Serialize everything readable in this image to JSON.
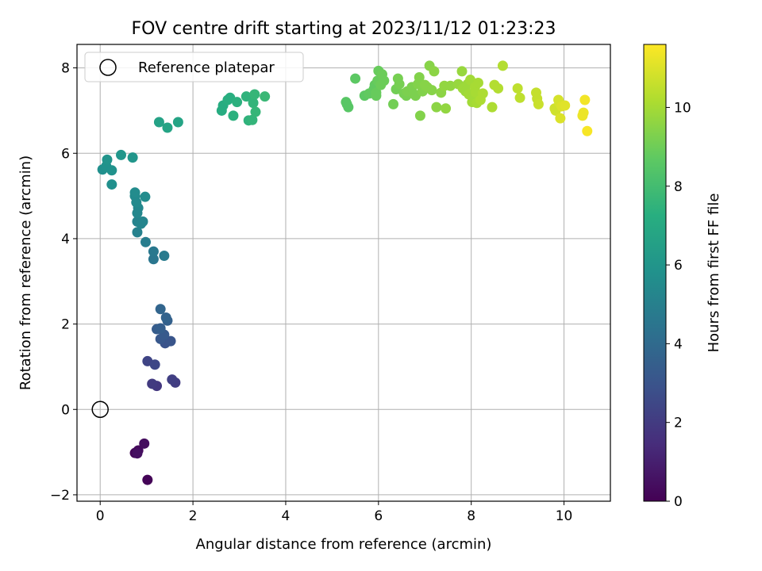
{
  "chart_data": {
    "type": "scatter",
    "title": "FOV centre drift starting at 2023/11/12 01:23:23",
    "xlabel": "Angular distance from reference (arcmin)",
    "ylabel": "Rotation from reference (arcmin)",
    "xlim": [
      -0.5,
      11.0
    ],
    "ylim": [
      -2.15,
      8.55
    ],
    "x_ticks": [
      0,
      2,
      4,
      6,
      8,
      10
    ],
    "y_ticks": [
      -2,
      0,
      2,
      4,
      6,
      8
    ],
    "grid": true,
    "legend": {
      "placement": "top-left",
      "entries": [
        "Reference platepar"
      ]
    },
    "colorbar": {
      "label": "Hours from first FF file",
      "min": 0,
      "max": 11.6,
      "ticks": [
        0,
        2,
        4,
        6,
        8,
        10
      ],
      "colormap": "viridis"
    },
    "reference_point": {
      "x": 0,
      "y": 0,
      "label": "Reference platepar"
    },
    "points": [
      [
        1.02,
        -1.65,
        0.1
      ],
      [
        0.75,
        -1.02,
        0.2
      ],
      [
        0.82,
        -0.96,
        0.3
      ],
      [
        0.95,
        -0.8,
        0.4
      ],
      [
        0.8,
        -1.03,
        0.5
      ],
      [
        1.22,
        0.55,
        1.9
      ],
      [
        1.12,
        0.6,
        2.0
      ],
      [
        1.62,
        0.63,
        2.1
      ],
      [
        1.55,
        0.7,
        2.2
      ],
      [
        1.02,
        1.13,
        2.4
      ],
      [
        1.18,
        1.05,
        2.5
      ],
      [
        1.4,
        1.55,
        3.0
      ],
      [
        1.52,
        1.6,
        3.1
      ],
      [
        1.3,
        1.65,
        3.2
      ],
      [
        1.38,
        1.75,
        3.3
      ],
      [
        1.22,
        1.88,
        3.4
      ],
      [
        1.3,
        1.9,
        3.5
      ],
      [
        1.45,
        2.08,
        3.6
      ],
      [
        1.42,
        2.15,
        3.7
      ],
      [
        1.3,
        2.35,
        3.8
      ],
      [
        1.15,
        3.52,
        4.6
      ],
      [
        1.15,
        3.7,
        4.7
      ],
      [
        1.38,
        3.6,
        4.8
      ],
      [
        0.98,
        3.92,
        4.9
      ],
      [
        0.8,
        4.15,
        5.1
      ],
      [
        0.8,
        4.4,
        5.2
      ],
      [
        0.92,
        4.4,
        5.3
      ],
      [
        0.88,
        4.35,
        5.3
      ],
      [
        0.8,
        4.6,
        5.4
      ],
      [
        0.82,
        4.72,
        5.4
      ],
      [
        0.78,
        4.85,
        5.5
      ],
      [
        0.75,
        5.0,
        5.5
      ],
      [
        0.75,
        5.08,
        5.6
      ],
      [
        0.97,
        4.98,
        5.6
      ],
      [
        0.25,
        5.27,
        5.8
      ],
      [
        0.05,
        5.62,
        5.8
      ],
      [
        0.13,
        5.7,
        5.9
      ],
      [
        0.25,
        5.6,
        5.9
      ],
      [
        0.15,
        5.85,
        6.0
      ],
      [
        0.45,
        5.96,
        6.1
      ],
      [
        0.7,
        5.9,
        6.1
      ],
      [
        1.27,
        6.73,
        6.7
      ],
      [
        1.45,
        6.6,
        6.8
      ],
      [
        1.68,
        6.73,
        6.8
      ],
      [
        2.62,
        7.0,
        7.2
      ],
      [
        2.65,
        7.12,
        7.2
      ],
      [
        2.75,
        7.25,
        7.3
      ],
      [
        2.8,
        7.3,
        7.3
      ],
      [
        2.87,
        6.88,
        7.4
      ],
      [
        2.95,
        7.2,
        7.4
      ],
      [
        3.15,
        7.33,
        7.5
      ],
      [
        3.2,
        6.77,
        7.5
      ],
      [
        3.28,
        6.78,
        7.6
      ],
      [
        3.3,
        7.18,
        7.6
      ],
      [
        3.33,
        7.38,
        7.7
      ],
      [
        3.35,
        6.97,
        7.7
      ],
      [
        3.55,
        7.33,
        7.8
      ],
      [
        5.3,
        7.2,
        8.6
      ],
      [
        5.32,
        7.15,
        8.6
      ],
      [
        5.35,
        7.08,
        8.6
      ],
      [
        5.5,
        7.75,
        8.7
      ],
      [
        5.7,
        7.35,
        8.7
      ],
      [
        5.8,
        7.4,
        8.8
      ],
      [
        5.9,
        7.5,
        8.8
      ],
      [
        5.92,
        7.6,
        8.8
      ],
      [
        5.95,
        7.42,
        8.9
      ],
      [
        5.95,
        7.35,
        8.9
      ],
      [
        5.98,
        7.7,
        8.9
      ],
      [
        6.0,
        7.93,
        8.9
      ],
      [
        6.05,
        7.6,
        9.0
      ],
      [
        6.08,
        7.85,
        9.0
      ],
      [
        6.12,
        7.7,
        9.0
      ],
      [
        6.32,
        7.15,
        9.1
      ],
      [
        6.38,
        7.5,
        9.1
      ],
      [
        6.42,
        7.75,
        9.2
      ],
      [
        6.45,
        7.62,
        9.2
      ],
      [
        6.55,
        7.4,
        9.2
      ],
      [
        6.6,
        7.35,
        9.2
      ],
      [
        6.62,
        7.45,
        9.3
      ],
      [
        6.72,
        7.55,
        9.3
      ],
      [
        6.75,
        7.4,
        9.3
      ],
      [
        6.8,
        7.35,
        9.3
      ],
      [
        6.85,
        7.62,
        9.4
      ],
      [
        6.88,
        7.78,
        9.4
      ],
      [
        6.9,
        6.88,
        9.4
      ],
      [
        6.95,
        7.45,
        9.4
      ],
      [
        7.0,
        7.6,
        9.5
      ],
      [
        7.05,
        7.55,
        9.5
      ],
      [
        7.1,
        8.05,
        9.5
      ],
      [
        7.15,
        7.48,
        9.5
      ],
      [
        7.2,
        7.92,
        9.6
      ],
      [
        7.25,
        7.08,
        9.6
      ],
      [
        7.35,
        7.42,
        9.6
      ],
      [
        7.42,
        7.58,
        9.7
      ],
      [
        7.45,
        7.05,
        9.7
      ],
      [
        7.55,
        7.58,
        9.7
      ],
      [
        7.72,
        7.62,
        9.8
      ],
      [
        7.8,
        7.92,
        9.8
      ],
      [
        7.82,
        7.52,
        9.9
      ],
      [
        7.88,
        7.45,
        9.9
      ],
      [
        7.92,
        7.62,
        9.9
      ],
      [
        7.95,
        7.38,
        10.0
      ],
      [
        7.98,
        7.72,
        10.0
      ],
      [
        8.02,
        7.2,
        10.0
      ],
      [
        8.05,
        7.32,
        10.0
      ],
      [
        8.08,
        7.55,
        10.1
      ],
      [
        8.1,
        7.42,
        10.1
      ],
      [
        8.12,
        7.18,
        10.1
      ],
      [
        8.15,
        7.65,
        10.1
      ],
      [
        8.2,
        7.25,
        10.2
      ],
      [
        8.25,
        7.4,
        10.2
      ],
      [
        8.45,
        7.08,
        10.2
      ],
      [
        8.5,
        7.6,
        10.3
      ],
      [
        8.58,
        7.52,
        10.3
      ],
      [
        8.68,
        8.05,
        10.3
      ],
      [
        9.0,
        7.52,
        10.5
      ],
      [
        9.05,
        7.3,
        10.5
      ],
      [
        9.4,
        7.42,
        10.6
      ],
      [
        9.42,
        7.28,
        10.6
      ],
      [
        9.45,
        7.15,
        10.7
      ],
      [
        9.8,
        7.05,
        10.8
      ],
      [
        9.82,
        7.0,
        10.8
      ],
      [
        9.88,
        7.25,
        10.9
      ],
      [
        9.9,
        7.18,
        10.9
      ],
      [
        9.92,
        6.82,
        11.0
      ],
      [
        9.95,
        7.1,
        11.0
      ],
      [
        10.02,
        7.12,
        11.1
      ],
      [
        10.4,
        6.88,
        11.3
      ],
      [
        10.42,
        6.95,
        11.3
      ],
      [
        10.45,
        7.25,
        11.4
      ],
      [
        10.5,
        6.52,
        11.5
      ]
    ]
  }
}
